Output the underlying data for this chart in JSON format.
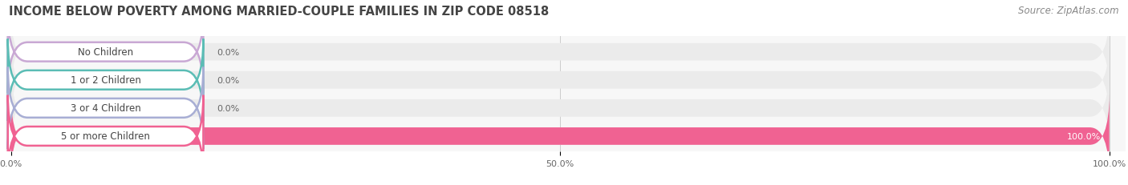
{
  "title": "INCOME BELOW POVERTY AMONG MARRIED-COUPLE FAMILIES IN ZIP CODE 08518",
  "source": "Source: ZipAtlas.com",
  "categories": [
    "No Children",
    "1 or 2 Children",
    "3 or 4 Children",
    "5 or more Children"
  ],
  "values": [
    0.0,
    0.0,
    0.0,
    100.0
  ],
  "bar_colors": [
    "#c9a8d4",
    "#5bbdb5",
    "#a8aed4",
    "#f06292"
  ],
  "bar_bg_color": "#ebebeb",
  "label_bg_color": "#ffffff",
  "xlim": [
    0,
    100
  ],
  "xticks": [
    0.0,
    50.0,
    100.0
  ],
  "xtick_labels": [
    "0.0%",
    "50.0%",
    "100.0%"
  ],
  "title_fontsize": 10.5,
  "source_fontsize": 8.5,
  "label_fontsize": 8.5,
  "value_fontsize": 8.0,
  "tick_fontsize": 8.0,
  "bar_height": 0.62,
  "background_color": "#ffffff",
  "plot_bg_color": "#f7f7f7"
}
